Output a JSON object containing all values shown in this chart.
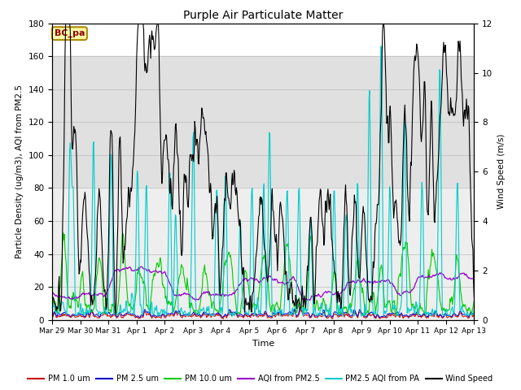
{
  "title": "Purple Air Particulate Matter",
  "xlabel": "Time",
  "ylabel_left": "Particle Density (ug/m3), AQI from PM2.5",
  "ylabel_right": "Wind Speed (m/s)",
  "ylim_left": [
    0,
    180
  ],
  "ylim_right": [
    0,
    12
  ],
  "yticks_left": [
    0,
    20,
    40,
    60,
    80,
    100,
    120,
    140,
    160,
    180
  ],
  "yticks_right": [
    0,
    2,
    4,
    6,
    8,
    10,
    12
  ],
  "x_tick_labels": [
    "Mar 29",
    "Mar 30",
    "Mar 31",
    "Apr 1",
    "Apr 2",
    "Apr 3",
    "Apr 4",
    "Apr 5",
    "Apr 6",
    "Apr 7",
    "Apr 8",
    "Apr 9",
    "Apr 10",
    "Apr 11",
    "Apr 12",
    "Apr 13"
  ],
  "colors": {
    "pm1": "#cc0000",
    "pm25": "#0000cc",
    "pm10": "#00cc00",
    "aqi_pm25": "#9900cc",
    "aqi_pa": "#00cccc",
    "wind": "#000000"
  },
  "legend_labels": [
    "PM 1.0 um",
    "PM 2.5 um",
    "PM 10.0 um",
    "AQI from PM2.5",
    "PM2.5 AQI from PA",
    "Wind Speed"
  ],
  "annotation_text": "BC_pa",
  "annotation_bbox_fc": "#ffffaa",
  "annotation_bbox_ec": "#aa8800",
  "bg_band_gray": [
    80,
    160
  ],
  "bg_color_gray": "#e0e0e0",
  "bg_band_light": [
    0,
    80
  ],
  "bg_color_light": "#eeeeee",
  "n_points": 720
}
